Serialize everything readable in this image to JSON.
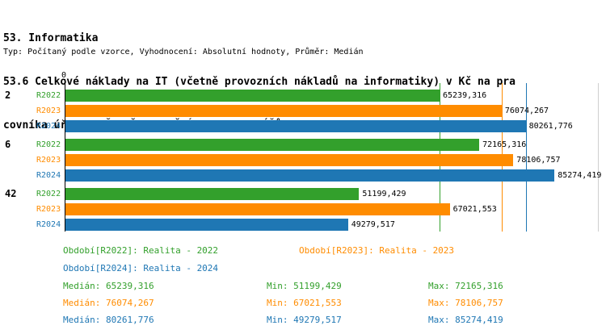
{
  "header": {
    "line1": "53. Informatika",
    "line2": "53.6 Celkové náklady na IT (včetně provozních nákladů na informatiky) v Kč na pra",
    "line3": "covníka úřadu (VČETNĚ UVOLNĚNÝCH FUNKCIONÁŘŮ)",
    "meta": "Typ: Počítaný podle vzorce, Vyhodnocení: Absolutní hodnoty, Průměr: Medián"
  },
  "axis": {
    "zero_label": "0",
    "max": 93000
  },
  "chart_data": {
    "type": "bar",
    "orientation": "horizontal",
    "title": "53.6 Celkové náklady na IT (včetně provozních nákladů na informatiky) v Kč na pracovníka úřadu (VČETNĚ UVOLNĚNÝCH FUNKCIONÁŘŮ)",
    "subtitle": "Typ: Počítaný podle vzorce, Vyhodnocení: Absolutní hodnoty, Průměr: Medián",
    "categories": [
      "2",
      "6",
      "42"
    ],
    "xlim": [
      0,
      93000
    ],
    "grid": false,
    "legend_position": "bottom",
    "series": [
      {
        "name": "R2022",
        "color": "#33A02C",
        "legend_text": "Období[R2022]: Realita - 2022",
        "values": [
          65239.316,
          72165.316,
          51199.429
        ],
        "displays": [
          "65239,316",
          "72165,316",
          "51199,429"
        ],
        "median": 65239.316,
        "median_text": "Medián: 65239,316",
        "min_text": "Min: 51199,429",
        "max_text": "Max: 72165,316"
      },
      {
        "name": "R2023",
        "color": "#FF8C00",
        "legend_text": "Období[R2023]: Realita - 2023",
        "values": [
          76074.267,
          78106.757,
          67021.553
        ],
        "displays": [
          "76074,267",
          "78106,757",
          "67021,553"
        ],
        "median": 76074.267,
        "median_text": "Medián: 76074,267",
        "min_text": "Min: 67021,553",
        "max_text": "Max: 78106,757"
      },
      {
        "name": "R2024",
        "color": "#1F77B4",
        "legend_text": "Období[R2024]: Realita - 2024",
        "values": [
          80261.776,
          85274.419,
          49279.517
        ],
        "displays": [
          "80261,776",
          "85274,419",
          "49279,517"
        ],
        "median": 80261.776,
        "median_text": "Medián: 80261,776",
        "min_text": "Min: 49279,517",
        "max_text": "Max: 85274,419"
      }
    ]
  }
}
